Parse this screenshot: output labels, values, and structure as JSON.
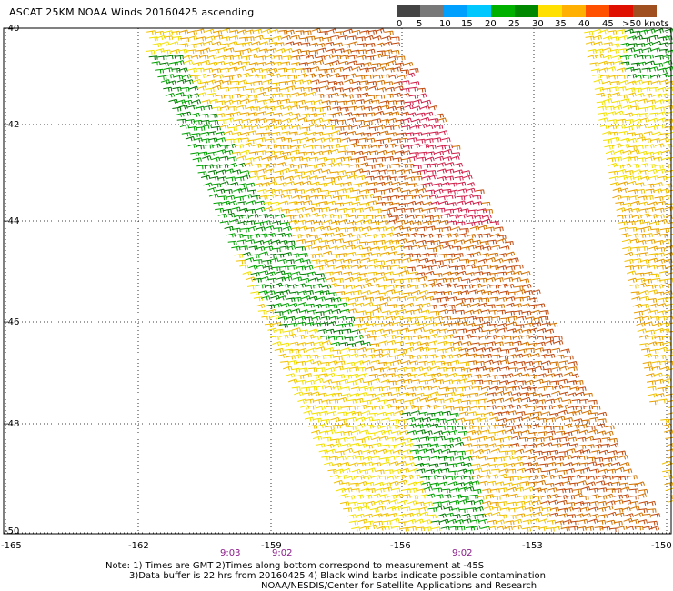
{
  "title": "ASCAT 25KM NOAA Winds 20160425 ascending",
  "legend": {
    "colors": [
      "#444444",
      "#787878",
      "#00a0ff",
      "#00c8ff",
      "#00b000",
      "#008800",
      "#ffe000",
      "#ffb000",
      "#ff5000",
      "#e01000",
      "#a05020",
      "#603010",
      "#ff00ff",
      "#a000d0",
      "#5a0090"
    ],
    "labels": [
      "0",
      "5",
      "10",
      "15",
      "20",
      "25",
      "30",
      "35",
      "40",
      "45",
      ">50 knots"
    ]
  },
  "axes": {
    "lat_labels": [
      "-40",
      "-42",
      "-44",
      "-46",
      "-48",
      "-50"
    ],
    "lon_labels": [
      "-165",
      "-162",
      "-159",
      "-156",
      "-153",
      "-150"
    ],
    "lat_range": [
      -50,
      -40
    ],
    "lon_range": [
      -165,
      -150
    ]
  },
  "pass_times": [
    "9:03",
    "9:02",
    "9:02"
  ],
  "notes": [
    "Note: 1) Times are GMT 2)Times along bottom correspond to measurement at -45S",
    "3)Data buffer is 22 hrs from 20160425 4) Black wind barbs indicate possible contamination",
    "NOAA/NESDIS/Center for Satellite Applications and Research"
  ]
}
